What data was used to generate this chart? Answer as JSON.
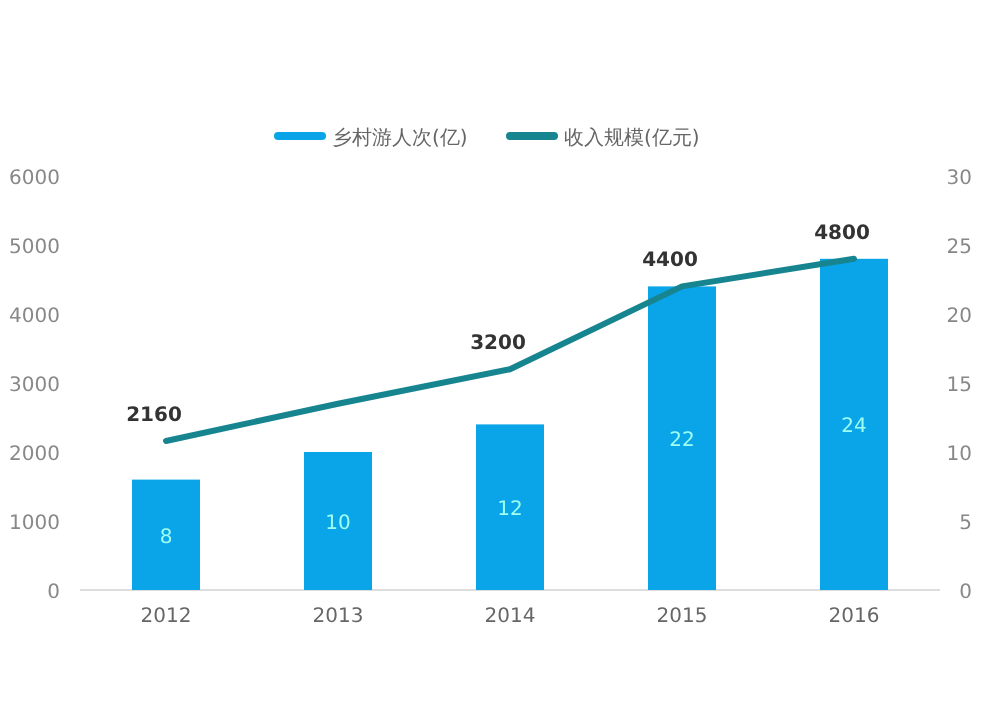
{
  "chart_data": {
    "type": "bar",
    "categories": [
      "2012",
      "2013",
      "2014",
      "2015",
      "2016"
    ],
    "series": [
      {
        "name": "乡村游人次(亿)",
        "axis": "y2",
        "color": "#0aa5e8",
        "values": [
          8,
          10,
          12,
          22,
          24
        ],
        "data_labels": true
      },
      {
        "name": "收入规模(亿元)",
        "type": "line",
        "color": "#17858f",
        "values": [
          2160,
          2700,
          3200,
          4400,
          4800
        ],
        "value_labels": [
          "2160",
          null,
          "3200",
          "4400",
          "4800"
        ]
      }
    ],
    "ylim": [
      0,
      6000
    ],
    "yticks": [
      0,
      1000,
      2000,
      3000,
      4000,
      5000,
      6000
    ],
    "y2lim": [
      0,
      30
    ],
    "y2ticks": [
      0,
      5,
      10,
      15,
      20,
      25,
      30
    ],
    "legend": "top",
    "grid": false
  }
}
